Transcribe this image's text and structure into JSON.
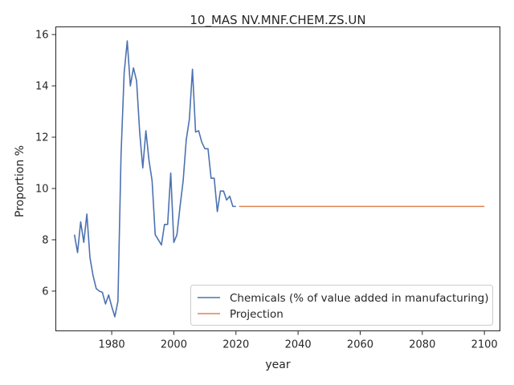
{
  "chart_data": {
    "type": "line",
    "title": "10_MAS NV.MNF.CHEM.ZS.UN",
    "xlabel": "year",
    "ylabel": "Proportion %",
    "xlim": [
      1962,
      2105
    ],
    "ylim": [
      4.45,
      16.3
    ],
    "xticks": [
      1980,
      2000,
      2020,
      2040,
      2060,
      2080,
      2100
    ],
    "yticks": [
      6,
      8,
      10,
      12,
      14,
      16
    ],
    "grid": false,
    "legend_position": "lower-right",
    "series": [
      {
        "name": "Chemicals (% of value added in manufacturing)",
        "color": "#4c72b0",
        "x": [
          1968,
          1969,
          1970,
          1971,
          1972,
          1973,
          1974,
          1975,
          1976,
          1977,
          1978,
          1979,
          1980,
          1981,
          1982,
          1983,
          1984,
          1985,
          1986,
          1987,
          1988,
          1989,
          1990,
          1991,
          1992,
          1993,
          1994,
          1995,
          1996,
          1997,
          1998,
          1999,
          2000,
          2001,
          2002,
          2003,
          2004,
          2005,
          2006,
          2007,
          2008,
          2009,
          2010,
          2011,
          2012,
          2013,
          2014,
          2015,
          2016,
          2017,
          2018,
          2019,
          2020
        ],
        "y": [
          8.2,
          7.5,
          8.7,
          7.9,
          9.0,
          7.3,
          6.6,
          6.1,
          6.0,
          5.95,
          5.5,
          5.85,
          5.4,
          5.0,
          5.6,
          11.3,
          14.5,
          15.75,
          14.0,
          14.7,
          14.2,
          12.2,
          10.8,
          12.25,
          11.1,
          10.3,
          8.2,
          8.0,
          7.8,
          8.6,
          8.6,
          10.6,
          7.9,
          8.2,
          9.3,
          10.3,
          11.9,
          12.7,
          14.65,
          12.2,
          12.25,
          11.8,
          11.55,
          11.55,
          10.4,
          10.4,
          9.1,
          9.9,
          9.9,
          9.55,
          9.7,
          9.3,
          9.3
        ]
      },
      {
        "name": "Projection",
        "color": "#dd8452",
        "x": [
          2021,
          2100
        ],
        "y": [
          9.3,
          9.3
        ]
      }
    ]
  }
}
